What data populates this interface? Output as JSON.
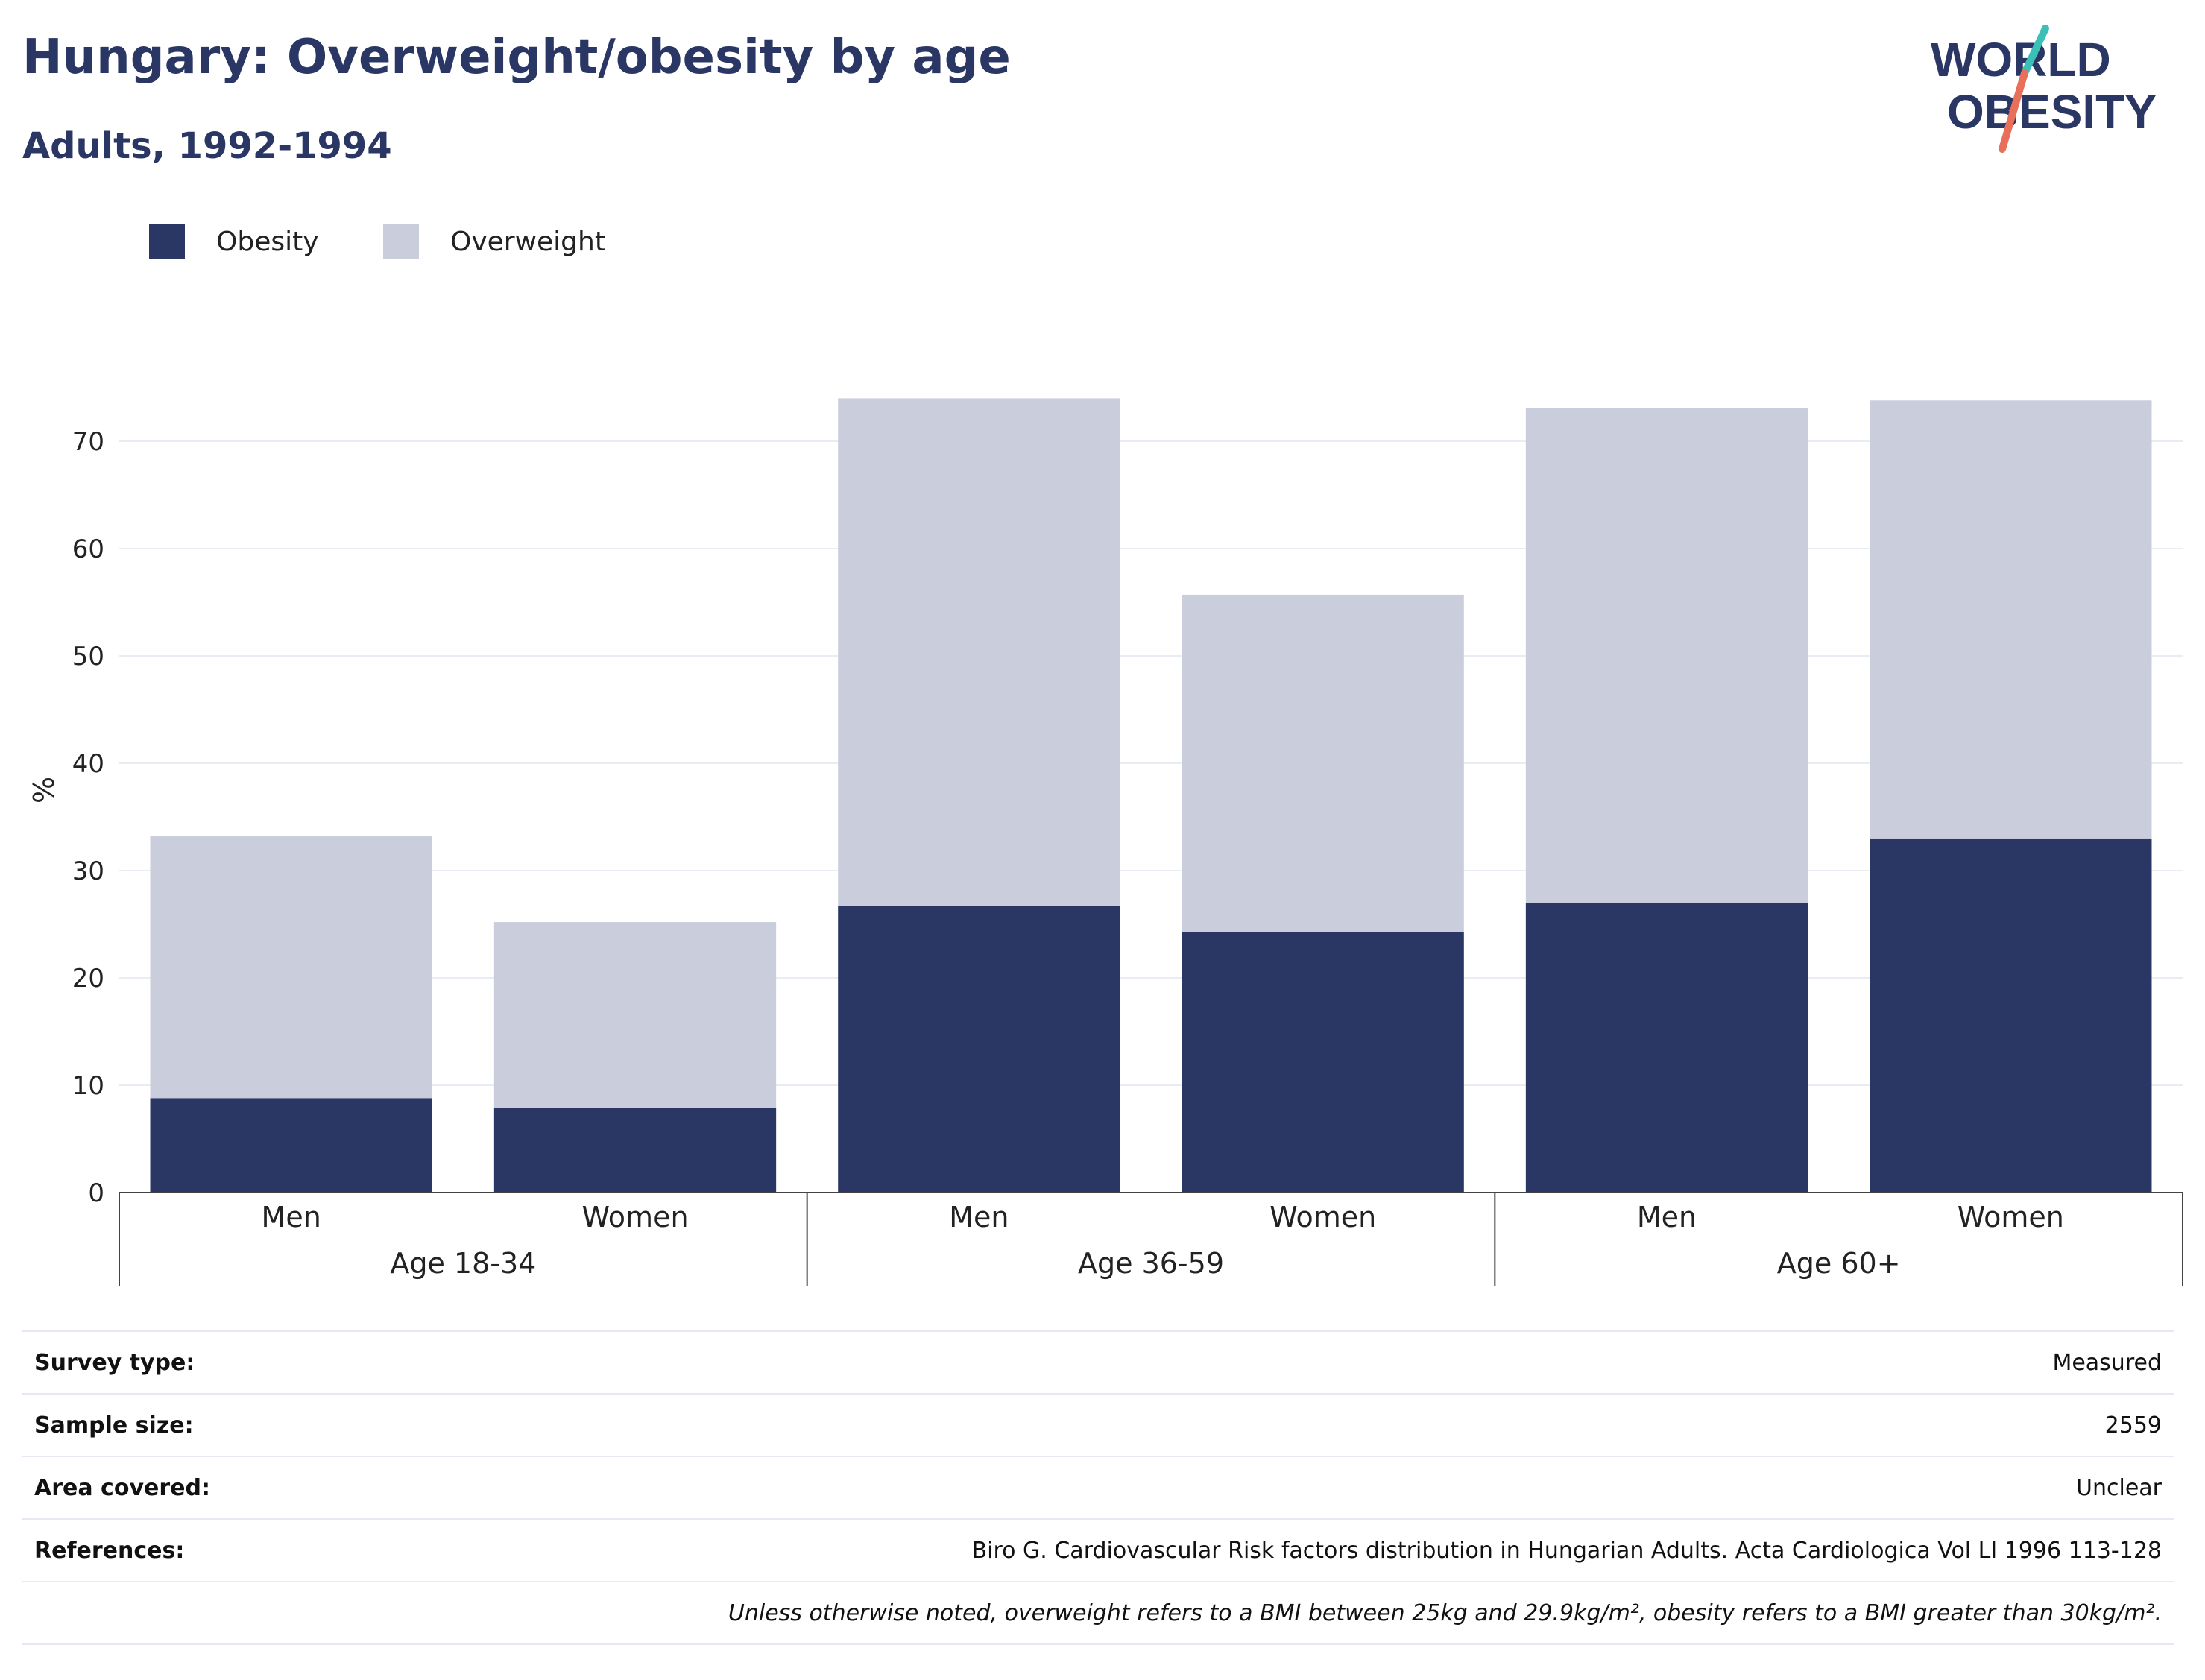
{
  "header": {
    "title": "Hungary: Overweight/obesity by age",
    "subtitle": "Adults, 1992-1994"
  },
  "logo": {
    "line1": "WORLD",
    "line2": "OBESITY"
  },
  "colors": {
    "obesity": "#2a3663",
    "overweight": "#cacddb",
    "text": "#2a3663",
    "accent_teal": "#3bbfb7",
    "accent_coral": "#e8705a"
  },
  "chart_data": {
    "type": "bar",
    "stacked": true,
    "ylabel": "%",
    "ylim": [
      0,
      75
    ],
    "yticks": [
      0,
      10,
      20,
      30,
      40,
      50,
      60,
      70
    ],
    "grid": true,
    "legend_position": "top-left",
    "groups": [
      "Age 18-34",
      "Age 36-59",
      "Age 60+"
    ],
    "categories": [
      "Men",
      "Women",
      "Men",
      "Women",
      "Men",
      "Women"
    ],
    "group_index": [
      0,
      0,
      1,
      1,
      2,
      2
    ],
    "series": [
      {
        "name": "Obesity",
        "values": [
          8.8,
          7.9,
          26.7,
          24.3,
          27.0,
          33.0
        ]
      },
      {
        "name": "Overweight",
        "values": [
          24.4,
          17.3,
          47.3,
          31.4,
          46.1,
          40.8
        ]
      }
    ]
  },
  "info": {
    "rows": [
      {
        "label": "Survey type:",
        "value": "Measured"
      },
      {
        "label": "Sample size:",
        "value": "2559"
      },
      {
        "label": "Area covered:",
        "value": "Unclear"
      },
      {
        "label": "References:",
        "value": "Biro G. Cardiovascular Risk factors distribution in Hungarian Adults. Acta Cardiologica Vol LI 1996 113-128"
      }
    ],
    "note": "Unless otherwise noted, overweight refers to a BMI between 25kg and 29.9kg/m², obesity refers to a BMI greater than 30kg/m²."
  }
}
